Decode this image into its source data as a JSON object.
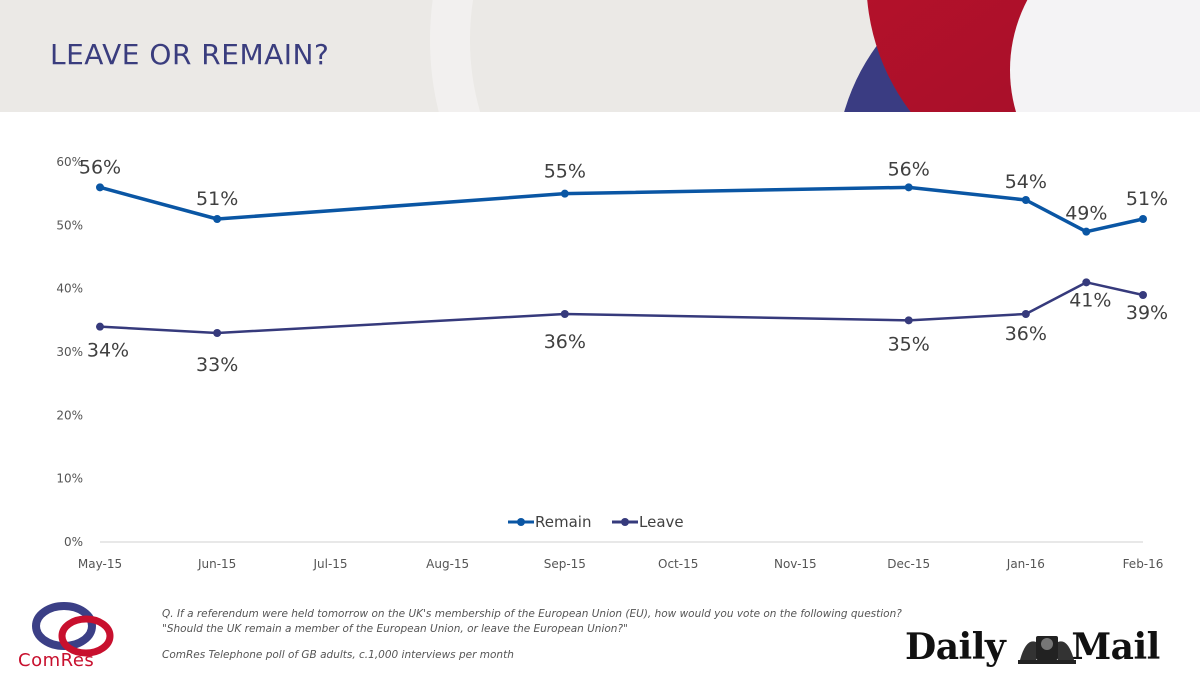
{
  "header": {
    "title": "LEAVE OR REMAIN?"
  },
  "footer": {
    "question": "Q. If a referendum were held tomorrow on the UK's membership of the European Union (EU), how would you vote on the following question? \"Should the UK remain a member of the European Union, or leave the European Union?\"",
    "methodology": "ComRes Telephone poll of GB adults, c.1,000 interviews per month",
    "comres_logo_text": "ComRes",
    "publisher_logo_text_left": "Daily",
    "publisher_logo_text_right": "Mail"
  },
  "colors": {
    "remain": "#0a56a4",
    "leave": "#363a7c",
    "title": "#3a3d7e",
    "axis_text": "#555555"
  },
  "chart_data": {
    "type": "line",
    "title": "",
    "xlabel": "",
    "ylabel": "",
    "x_ticks": [
      "May-15",
      "Jun-15",
      "Jul-15",
      "Aug-15",
      "Sep-15",
      "Oct-15",
      "Nov-15",
      "Dec-15",
      "Jan-16",
      "Feb-16"
    ],
    "y_ticks": [
      "0%",
      "10%",
      "20%",
      "30%",
      "40%",
      "50%",
      "60%"
    ],
    "ylim": [
      0,
      60
    ],
    "grid": false,
    "legend_position": "bottom-center",
    "series": [
      {
        "name": "Remain",
        "color": "#0a56a4",
        "points": [
          {
            "x": "2015-05-01",
            "y": 56,
            "label": "56%"
          },
          {
            "x": "2015-06-01",
            "y": 51,
            "label": "51%"
          },
          {
            "x": "2015-09-01",
            "y": 55,
            "label": "55%"
          },
          {
            "x": "2015-12-01",
            "y": 56,
            "label": "56%"
          },
          {
            "x": "2016-01-01",
            "y": 54,
            "label": "54%"
          },
          {
            "x": "2016-01-17",
            "y": 49,
            "label": "49%"
          },
          {
            "x": "2016-02-01",
            "y": 51,
            "label": "51%"
          }
        ]
      },
      {
        "name": "Leave",
        "color": "#363a7c",
        "points": [
          {
            "x": "2015-05-01",
            "y": 34,
            "label": "34%"
          },
          {
            "x": "2015-06-01",
            "y": 33,
            "label": "33%"
          },
          {
            "x": "2015-09-01",
            "y": 36,
            "label": "36%"
          },
          {
            "x": "2015-12-01",
            "y": 35,
            "label": "35%"
          },
          {
            "x": "2016-01-01",
            "y": 36,
            "label": "36%"
          },
          {
            "x": "2016-01-17",
            "y": 41,
            "label": "41%"
          },
          {
            "x": "2016-02-01",
            "y": 39,
            "label": "39%"
          }
        ]
      }
    ]
  }
}
